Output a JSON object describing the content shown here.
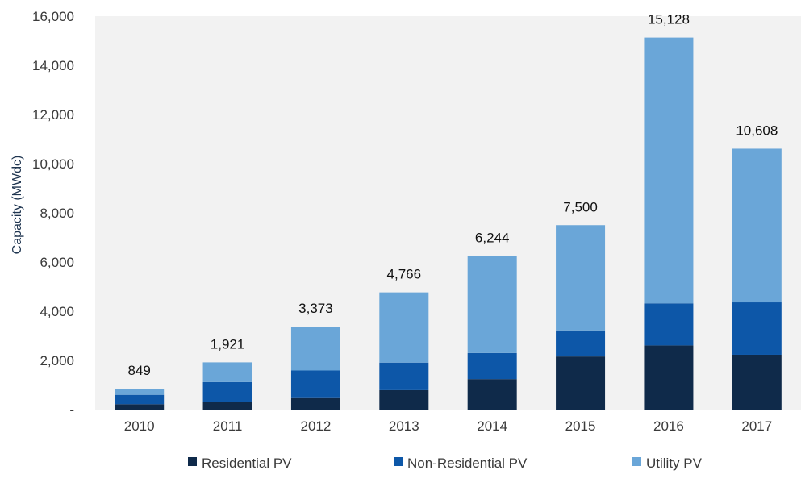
{
  "chart_data": {
    "type": "bar",
    "stacked": true,
    "categories": [
      "2010",
      "2011",
      "2012",
      "2013",
      "2014",
      "2015",
      "2016",
      "2017"
    ],
    "series": [
      {
        "name": "Residential PV",
        "color": "#0f2a4a",
        "values": [
          220,
          300,
          500,
          790,
          1240,
          2160,
          2610,
          2230
        ]
      },
      {
        "name": "Non-Residential PV",
        "color": "#0d57a8",
        "values": [
          380,
          820,
          1090,
          1120,
          1060,
          1060,
          1710,
          2130
        ]
      },
      {
        "name": "Utility PV",
        "color": "#6aa6d8",
        "values": [
          249,
          801,
          1783,
          2856,
          3944,
          4280,
          10808,
          6248
        ]
      }
    ],
    "totals": [
      "849",
      "1,921",
      "3,373",
      "4,766",
      "6,244",
      "7,500",
      "15,128",
      "10,608"
    ],
    "ylabel": "Capacity (MWdc)",
    "ylim": [
      0,
      16000
    ],
    "yticks": [
      {
        "value": 0,
        "label": "-"
      },
      {
        "value": 2000,
        "label": "2,000"
      },
      {
        "value": 4000,
        "label": "4,000"
      },
      {
        "value": 6000,
        "label": "6,000"
      },
      {
        "value": 8000,
        "label": "8,000"
      },
      {
        "value": 10000,
        "label": "10,000"
      },
      {
        "value": 12000,
        "label": "12,000"
      },
      {
        "value": 14000,
        "label": "14,000"
      },
      {
        "value": 16000,
        "label": "16,000"
      }
    ],
    "plot_background": "#f2f2f2",
    "grid": false,
    "legend_position": "bottom"
  }
}
